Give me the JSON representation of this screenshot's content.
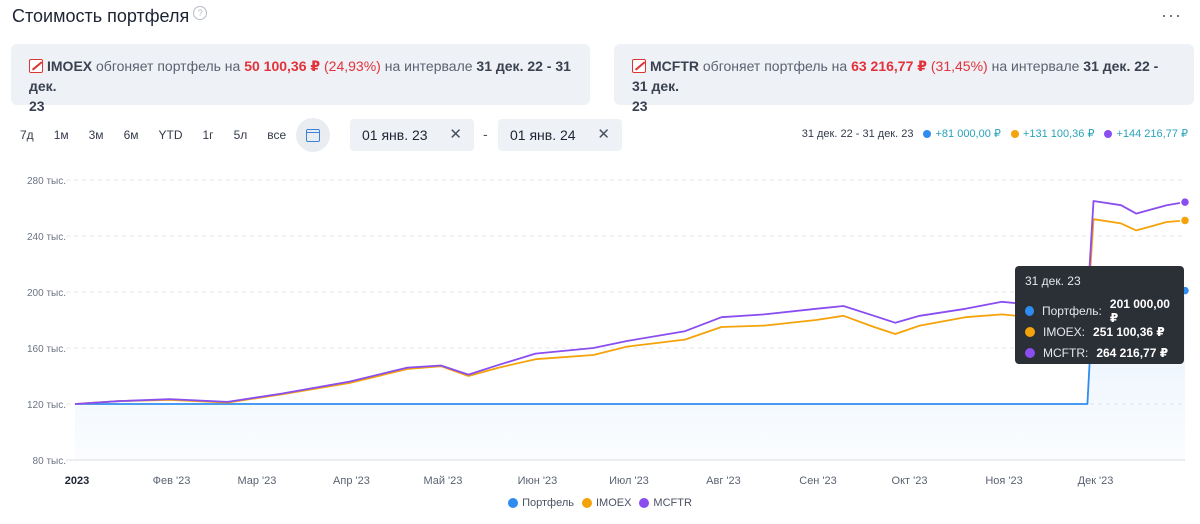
{
  "header": {
    "title": "Стоимость портфеля",
    "help_glyph": "?",
    "more_glyph": "···"
  },
  "alerts": [
    {
      "index": "IMOEX",
      "text1": "обгоняет портфель на",
      "amount": "50 100,36 ₽",
      "pct": "(24,93%)",
      "text2": "на интервале",
      "range1": "31 дек. 22 - 31 дек.",
      "range2": "23"
    },
    {
      "index": "MCFTR",
      "text1": "обгоняет портфель на",
      "amount": "63 216,77 ₽",
      "pct": "(31,45%)",
      "text2": "на интервале",
      "range1": "31 дек. 22 - 31 дек.",
      "range2": "23"
    }
  ],
  "periods": [
    "7д",
    "1м",
    "3м",
    "6м",
    "YTD",
    "1г",
    "5л",
    "все"
  ],
  "date_from": "01 янв. 23",
  "date_to": "01 янв. 24",
  "date_separator": "-",
  "clear_glyph": "✕",
  "summary": {
    "range": "31 дек. 22 - 31 дек. 23",
    "items": [
      {
        "value": "+81 000,00 ₽",
        "color": "#2f8cf0"
      },
      {
        "value": "+131 100,36 ₽",
        "color": "#f5a30a"
      },
      {
        "value": "+144 216,77 ₽",
        "color": "#8a4df0"
      }
    ]
  },
  "tooltip": {
    "date": "31 дек. 23",
    "rows": [
      {
        "label": "Портфель:",
        "value": "201 000,00 ₽",
        "color": "#2f8cf0"
      },
      {
        "label": "IMOEX:",
        "value": "251 100,36 ₽",
        "color": "#f5a30a"
      },
      {
        "label": "MCFTR:",
        "value": "264 216,77 ₽",
        "color": "#8a4df0"
      }
    ]
  },
  "chart_data": {
    "type": "line",
    "x_start": "2023-01-01",
    "x_end": "2023-12-31",
    "ylim": [
      80000,
      280000
    ],
    "yticks": [
      {
        "value": 80000,
        "label": "80 тыс."
      },
      {
        "value": 120000,
        "label": "120 тыс."
      },
      {
        "value": 160000,
        "label": "160 тыс."
      },
      {
        "value": 200000,
        "label": "200 тыс."
      },
      {
        "value": 240000,
        "label": "240 тыс."
      },
      {
        "value": 280000,
        "label": "280 тыс."
      }
    ],
    "xticks": [
      {
        "date": "2023-01-01",
        "label": "2023",
        "bold": true
      },
      {
        "date": "2023-02-01",
        "label": "Фев '23"
      },
      {
        "date": "2023-03-01",
        "label": "Мар '23"
      },
      {
        "date": "2023-04-01",
        "label": "Апр '23"
      },
      {
        "date": "2023-05-01",
        "label": "Май '23"
      },
      {
        "date": "2023-06-01",
        "label": "Июн '23"
      },
      {
        "date": "2023-07-01",
        "label": "Июл '23"
      },
      {
        "date": "2023-08-01",
        "label": "Авг '23"
      },
      {
        "date": "2023-09-01",
        "label": "Сен '23"
      },
      {
        "date": "2023-10-01",
        "label": "Окт '23"
      },
      {
        "date": "2023-11-01",
        "label": "Ноя '23"
      },
      {
        "date": "2023-12-01",
        "label": "Дек '23"
      }
    ],
    "grid": true,
    "legend_position": "bottom",
    "series": [
      {
        "name": "Портфель",
        "color": "#2f8cf0",
        "area": true,
        "points": [
          [
            "2023-01-01",
            120000
          ],
          [
            "2023-11-29",
            120000
          ],
          [
            "2023-12-01",
            201000
          ],
          [
            "2023-12-31",
            201000
          ]
        ]
      },
      {
        "name": "IMOEX",
        "color": "#f5a30a",
        "points": [
          [
            "2023-01-01",
            120000
          ],
          [
            "2023-01-15",
            122000
          ],
          [
            "2023-02-01",
            123000
          ],
          [
            "2023-02-20",
            121000
          ],
          [
            "2023-03-10",
            127000
          ],
          [
            "2023-04-01",
            135000
          ],
          [
            "2023-04-20",
            145000
          ],
          [
            "2023-05-01",
            147000
          ],
          [
            "2023-05-10",
            140000
          ],
          [
            "2023-05-20",
            146000
          ],
          [
            "2023-06-01",
            152000
          ],
          [
            "2023-06-20",
            155000
          ],
          [
            "2023-07-01",
            161000
          ],
          [
            "2023-07-20",
            166000
          ],
          [
            "2023-08-01",
            175000
          ],
          [
            "2023-08-15",
            176000
          ],
          [
            "2023-09-01",
            180000
          ],
          [
            "2023-09-10",
            183000
          ],
          [
            "2023-09-20",
            175000
          ],
          [
            "2023-09-27",
            170000
          ],
          [
            "2023-10-05",
            176000
          ],
          [
            "2023-10-20",
            182000
          ],
          [
            "2023-11-01",
            184000
          ],
          [
            "2023-11-15",
            181000
          ],
          [
            "2023-11-29",
            183000
          ],
          [
            "2023-12-01",
            252000
          ],
          [
            "2023-12-10",
            249000
          ],
          [
            "2023-12-15",
            244000
          ],
          [
            "2023-12-20",
            247000
          ],
          [
            "2023-12-25",
            250000
          ],
          [
            "2023-12-31",
            251100.36
          ]
        ]
      },
      {
        "name": "MCFTR",
        "color": "#8a4df0",
        "points": [
          [
            "2023-01-01",
            120000
          ],
          [
            "2023-01-15",
            122000
          ],
          [
            "2023-02-01",
            123500
          ],
          [
            "2023-02-20",
            121500
          ],
          [
            "2023-03-10",
            127500
          ],
          [
            "2023-04-01",
            136000
          ],
          [
            "2023-04-20",
            146000
          ],
          [
            "2023-05-01",
            147500
          ],
          [
            "2023-05-10",
            141000
          ],
          [
            "2023-05-20",
            148000
          ],
          [
            "2023-06-01",
            156000
          ],
          [
            "2023-06-20",
            160000
          ],
          [
            "2023-07-01",
            165000
          ],
          [
            "2023-07-20",
            172000
          ],
          [
            "2023-08-01",
            182000
          ],
          [
            "2023-08-15",
            184000
          ],
          [
            "2023-09-01",
            188000
          ],
          [
            "2023-09-10",
            190000
          ],
          [
            "2023-09-20",
            183000
          ],
          [
            "2023-09-27",
            178000
          ],
          [
            "2023-10-05",
            183000
          ],
          [
            "2023-10-20",
            188000
          ],
          [
            "2023-11-01",
            193000
          ],
          [
            "2023-11-15",
            190000
          ],
          [
            "2023-11-29",
            192000
          ],
          [
            "2023-12-01",
            265000
          ],
          [
            "2023-12-10",
            262000
          ],
          [
            "2023-12-15",
            256000
          ],
          [
            "2023-12-20",
            259000
          ],
          [
            "2023-12-25",
            262000
          ],
          [
            "2023-12-31",
            264216.77
          ]
        ]
      }
    ]
  }
}
